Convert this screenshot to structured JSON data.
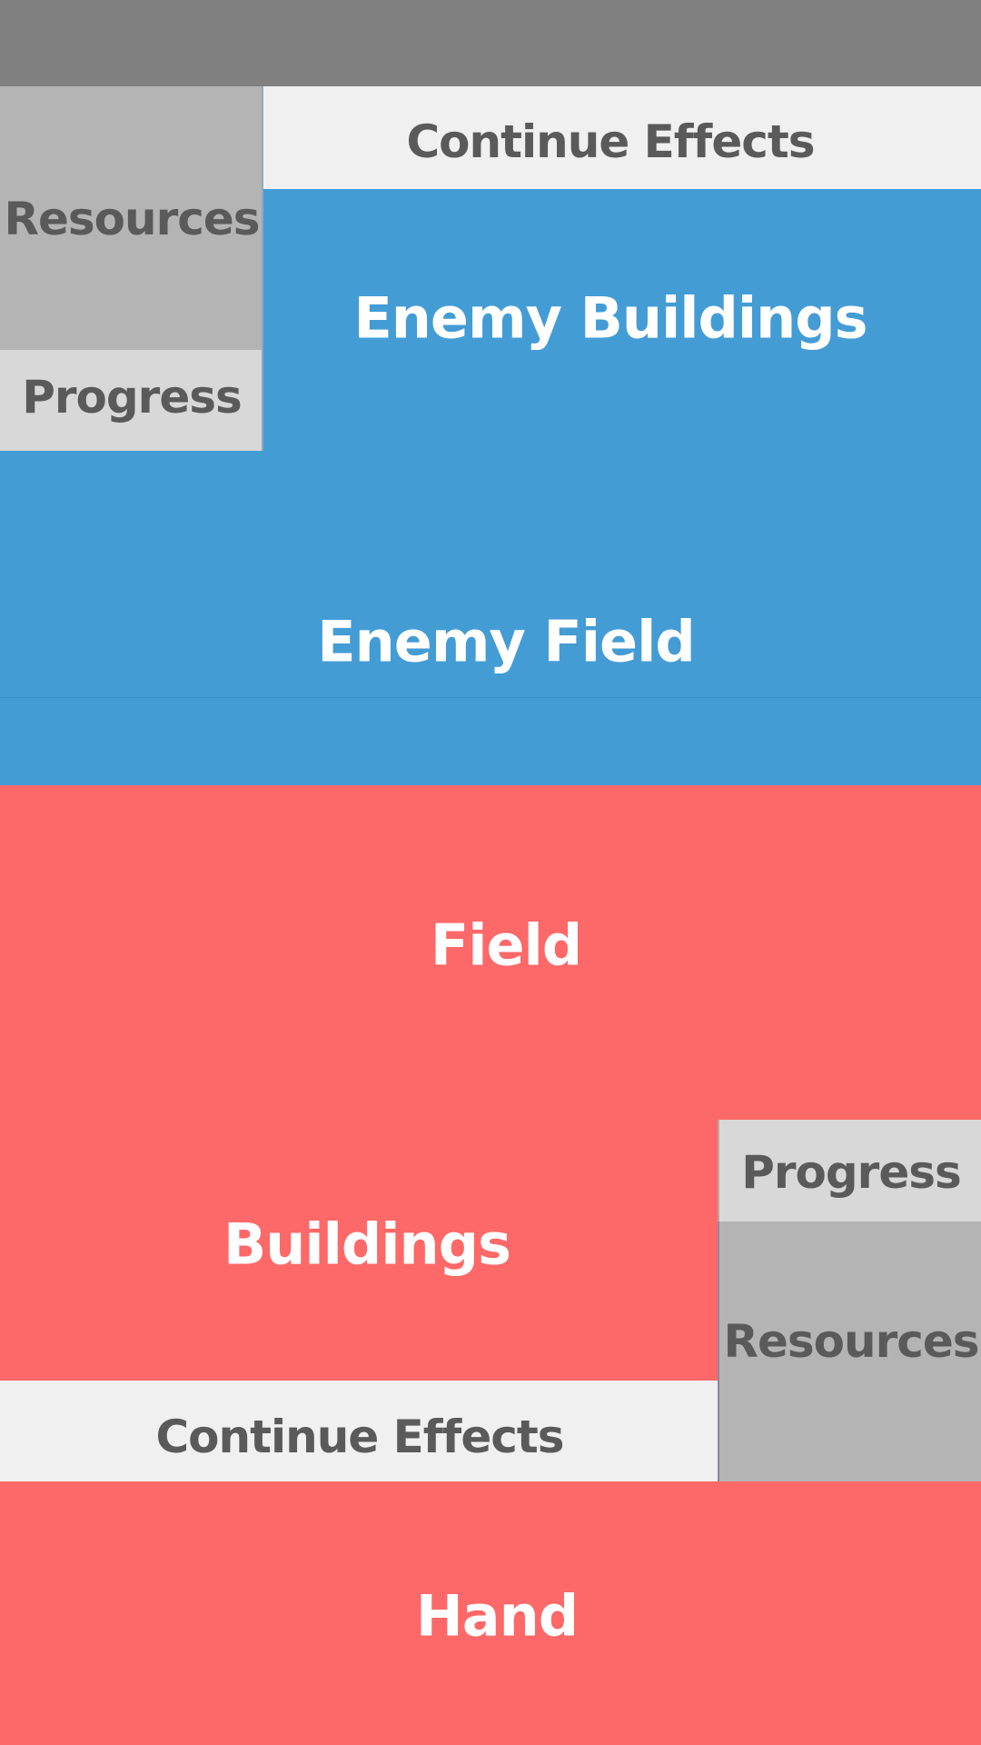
{
  "colors": {
    "top_bar": "#808080",
    "enemy_blue": "#449cd5",
    "player_red": "#fd6868",
    "panel_light": "#f0f0f0",
    "panel_mid": "#b4b4b4",
    "panel_light_gray": "#d8d8d8",
    "dark_text": "#5a5a5a",
    "white_text": "#ffffff"
  },
  "enemy": {
    "continue_effects": "Continue Effects",
    "resources": "Resources",
    "progress": "Progress",
    "buildings": "Enemy Buildings",
    "field": "Enemy Field"
  },
  "player": {
    "field": "Field",
    "buildings": "Buildings",
    "progress": "Progress",
    "resources": "Resources",
    "continue_effects": "Continue Effects",
    "hand": "Hand"
  }
}
